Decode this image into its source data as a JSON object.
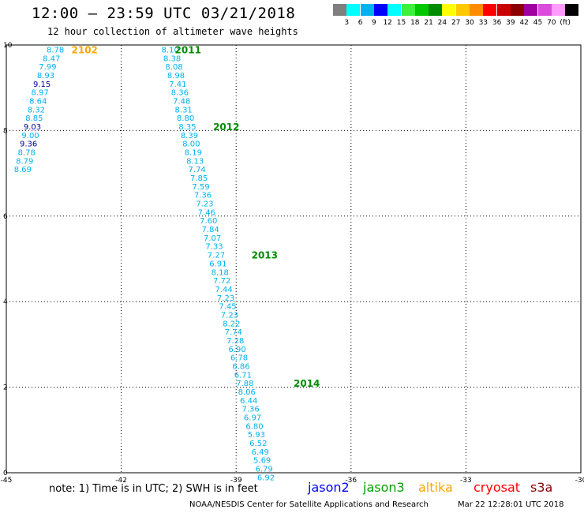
{
  "header": {
    "title": "12:00 – 23:59 UTC 03/21/2018",
    "subtitle": "12 hour collection of altimeter wave heights"
  },
  "legend": {
    "colors": [
      "#808080",
      "#00ffff",
      "#00b2ee",
      "#0000ff",
      "#00ffff",
      "#3cf03c",
      "#00c800",
      "#008c00",
      "#ffff00",
      "#ffc800",
      "#ff8c00",
      "#ff0000",
      "#c80000",
      "#8c0000",
      "#a000a0",
      "#dc4cdc",
      "#ff9bff",
      "#000000"
    ],
    "labels": [
      "3",
      "6",
      "9",
      "12",
      "15",
      "18",
      "21",
      "24",
      "27",
      "30",
      "33",
      "36",
      "39",
      "42",
      "45",
      "70",
      "(ft)"
    ]
  },
  "note": "note:  1) Time is in UTC;  2) SWH is in feet",
  "satellites": [
    {
      "name": "jason2",
      "color": "#0000ff"
    },
    {
      "name": "jason3",
      "color": "#00a000"
    },
    {
      "name": "altika",
      "color": "#ffa500"
    },
    {
      "name": "cryosat",
      "color": "#ff0000"
    },
    {
      "name": "s3a",
      "color": "#8b0000"
    }
  ],
  "footer": {
    "left": "NOAA/NESDIS Center for Satellite Applications and Research",
    "right": "Mar 22 12:28:01 UTC 2018"
  },
  "chart_data": {
    "type": "scatter",
    "title": "12 hour collection of altimeter wave heights",
    "xlim": [
      -45,
      -30
    ],
    "ylim": [
      0,
      10
    ],
    "x_ticks": [
      "-45",
      "-42",
      "-39",
      "-36",
      "-33",
      "-30"
    ],
    "y_ticks": [
      "0",
      "2",
      "4",
      "6",
      "8",
      "10"
    ],
    "grid": true,
    "colors": {
      "cyan": "#00b2ee",
      "navy": "#0000a0",
      "green": "#008c00",
      "orange": "#ffa500"
    },
    "time_labels": [
      {
        "text": "2102",
        "x": -43.3,
        "y": 9.9,
        "color": "orange"
      },
      {
        "text": "2011",
        "x": -40.6,
        "y": 9.9,
        "color": "green"
      },
      {
        "text": "2012",
        "x": -39.6,
        "y": 8.1,
        "color": "green"
      },
      {
        "text": "2013",
        "x": -38.6,
        "y": 5.1,
        "color": "green"
      },
      {
        "text": "2014",
        "x": -37.5,
        "y": 2.1,
        "color": "green"
      }
    ],
    "tracks": [
      {
        "points": [
          {
            "x": -43.95,
            "y": 9.9,
            "v": "8.78",
            "c": "cyan"
          },
          {
            "x": -44.05,
            "y": 9.7,
            "v": "8.47",
            "c": "cyan"
          },
          {
            "x": -44.15,
            "y": 9.5,
            "v": "7.99",
            "c": "cyan"
          },
          {
            "x": -44.2,
            "y": 9.3,
            "v": "8.93",
            "c": "cyan"
          },
          {
            "x": -44.3,
            "y": 9.1,
            "v": "9.15",
            "c": "navy"
          },
          {
            "x": -44.35,
            "y": 8.9,
            "v": "8.97",
            "c": "cyan"
          },
          {
            "x": -44.4,
            "y": 8.7,
            "v": "8.64",
            "c": "cyan"
          },
          {
            "x": -44.45,
            "y": 8.5,
            "v": "8.32",
            "c": "cyan"
          },
          {
            "x": -44.5,
            "y": 8.3,
            "v": "8.85",
            "c": "cyan"
          },
          {
            "x": -44.55,
            "y": 8.1,
            "v": "9.03",
            "c": "navy"
          },
          {
            "x": -44.6,
            "y": 7.9,
            "v": "9.00",
            "c": "cyan"
          },
          {
            "x": -44.65,
            "y": 7.7,
            "v": "9.36",
            "c": "navy"
          },
          {
            "x": -44.7,
            "y": 7.5,
            "v": "8.78",
            "c": "cyan"
          },
          {
            "x": -44.75,
            "y": 7.3,
            "v": "8.79",
            "c": "cyan"
          },
          {
            "x": -44.8,
            "y": 7.1,
            "v": "8.69",
            "c": "cyan"
          }
        ]
      },
      {
        "points": [
          {
            "x": -40.95,
            "y": 9.9,
            "v": "8.10",
            "c": "cyan"
          },
          {
            "x": -40.9,
            "y": 9.7,
            "v": "8.38",
            "c": "cyan"
          },
          {
            "x": -40.85,
            "y": 9.5,
            "v": "8.08",
            "c": "cyan"
          },
          {
            "x": -40.8,
            "y": 9.3,
            "v": "8.98",
            "c": "cyan"
          },
          {
            "x": -40.75,
            "y": 9.1,
            "v": "7.41",
            "c": "cyan"
          },
          {
            "x": -40.7,
            "y": 8.9,
            "v": "8.36",
            "c": "cyan"
          },
          {
            "x": -40.65,
            "y": 8.7,
            "v": "7.48",
            "c": "cyan"
          },
          {
            "x": -40.6,
            "y": 8.5,
            "v": "8.31",
            "c": "cyan"
          },
          {
            "x": -40.55,
            "y": 8.3,
            "v": "8.80",
            "c": "cyan"
          },
          {
            "x": -40.5,
            "y": 8.1,
            "v": "8.35",
            "c": "cyan"
          },
          {
            "x": -40.45,
            "y": 7.9,
            "v": "8.39",
            "c": "cyan"
          },
          {
            "x": -40.4,
            "y": 7.7,
            "v": "8.00",
            "c": "cyan"
          },
          {
            "x": -40.35,
            "y": 7.5,
            "v": "8.19",
            "c": "cyan"
          },
          {
            "x": -40.3,
            "y": 7.3,
            "v": "8.13",
            "c": "cyan"
          },
          {
            "x": -40.25,
            "y": 7.1,
            "v": "7.74",
            "c": "cyan"
          },
          {
            "x": -40.2,
            "y": 6.9,
            "v": "7.85",
            "c": "cyan"
          },
          {
            "x": -40.15,
            "y": 6.7,
            "v": "7.59",
            "c": "cyan"
          },
          {
            "x": -40.1,
            "y": 6.5,
            "v": "7.36",
            "c": "cyan"
          },
          {
            "x": -40.05,
            "y": 6.3,
            "v": "7.23",
            "c": "cyan"
          },
          {
            "x": -40.0,
            "y": 6.1,
            "v": "7.46",
            "c": "cyan"
          },
          {
            "x": -39.95,
            "y": 5.9,
            "v": "7.60",
            "c": "cyan"
          },
          {
            "x": -39.9,
            "y": 5.7,
            "v": "7.84",
            "c": "cyan"
          },
          {
            "x": -39.85,
            "y": 5.5,
            "v": "7.07",
            "c": "cyan"
          },
          {
            "x": -39.8,
            "y": 5.3,
            "v": "7.33",
            "c": "cyan"
          },
          {
            "x": -39.75,
            "y": 5.1,
            "v": "7.27",
            "c": "cyan"
          },
          {
            "x": -39.7,
            "y": 4.9,
            "v": "6.91",
            "c": "cyan"
          },
          {
            "x": -39.65,
            "y": 4.7,
            "v": "8.18",
            "c": "cyan"
          },
          {
            "x": -39.6,
            "y": 4.5,
            "v": "7.72",
            "c": "cyan"
          },
          {
            "x": -39.55,
            "y": 4.3,
            "v": "7.44",
            "c": "cyan"
          },
          {
            "x": -39.5,
            "y": 4.1,
            "v": "7.23",
            "c": "cyan"
          },
          {
            "x": -39.45,
            "y": 3.9,
            "v": "7.45",
            "c": "cyan"
          },
          {
            "x": -39.4,
            "y": 3.7,
            "v": "7.23",
            "c": "cyan"
          },
          {
            "x": -39.35,
            "y": 3.5,
            "v": "8.22",
            "c": "cyan"
          },
          {
            "x": -39.3,
            "y": 3.3,
            "v": "7.74",
            "c": "cyan"
          },
          {
            "x": -39.25,
            "y": 3.1,
            "v": "7.28",
            "c": "cyan"
          },
          {
            "x": -39.2,
            "y": 2.9,
            "v": "6.90",
            "c": "cyan"
          },
          {
            "x": -39.15,
            "y": 2.7,
            "v": "6.78",
            "c": "cyan"
          },
          {
            "x": -39.1,
            "y": 2.5,
            "v": "6.86",
            "c": "cyan"
          },
          {
            "x": -39.05,
            "y": 2.3,
            "v": "6.71",
            "c": "cyan"
          },
          {
            "x": -39.0,
            "y": 2.1,
            "v": "7.88",
            "c": "cyan"
          },
          {
            "x": -38.95,
            "y": 1.9,
            "v": "8.06",
            "c": "cyan"
          },
          {
            "x": -38.9,
            "y": 1.7,
            "v": "6.44",
            "c": "cyan"
          },
          {
            "x": -38.85,
            "y": 1.5,
            "v": "7.36",
            "c": "cyan"
          },
          {
            "x": -38.8,
            "y": 1.3,
            "v": "6.97",
            "c": "cyan"
          },
          {
            "x": -38.75,
            "y": 1.1,
            "v": "6.80",
            "c": "cyan"
          },
          {
            "x": -38.7,
            "y": 0.9,
            "v": "5.93",
            "c": "cyan"
          },
          {
            "x": -38.65,
            "y": 0.7,
            "v": "6.52",
            "c": "cyan"
          },
          {
            "x": -38.6,
            "y": 0.5,
            "v": "6.49",
            "c": "cyan"
          },
          {
            "x": -38.55,
            "y": 0.3,
            "v": "5.69",
            "c": "cyan"
          },
          {
            "x": -38.5,
            "y": 0.1,
            "v": "6.79",
            "c": "cyan"
          },
          {
            "x": -38.45,
            "y": -0.1,
            "v": "6.92",
            "c": "cyan"
          }
        ]
      }
    ]
  }
}
